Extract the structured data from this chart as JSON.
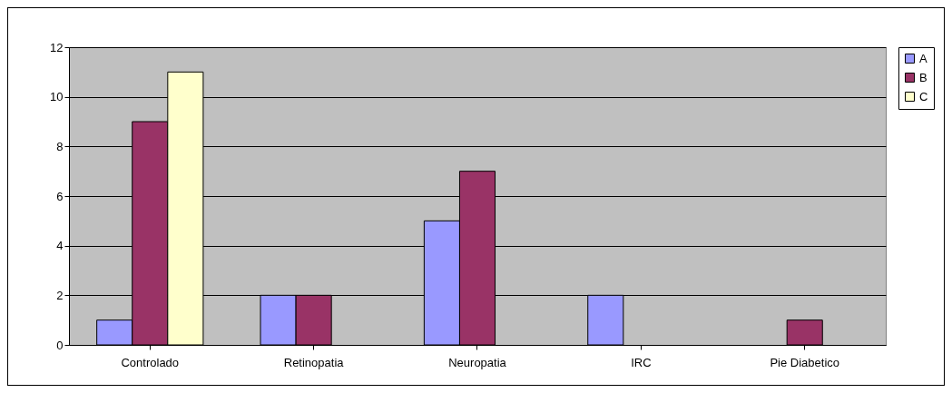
{
  "chart_data": {
    "type": "bar",
    "categories": [
      "Controlado",
      "Retinopatia",
      "Neuropatia",
      "IRC",
      "Pie Diabetico"
    ],
    "series": [
      {
        "name": "A",
        "color": "#9999ff",
        "values": [
          1,
          2,
          5,
          2,
          null
        ]
      },
      {
        "name": "B",
        "color": "#993366",
        "values": [
          9,
          2,
          7,
          null,
          1
        ]
      },
      {
        "name": "C",
        "color": "#ffffcc",
        "values": [
          11,
          null,
          null,
          null,
          null
        ]
      }
    ],
    "ylim": [
      0,
      12
    ],
    "yticks": [
      0,
      2,
      4,
      6,
      8,
      10,
      12
    ],
    "grid": "y",
    "legend": "right"
  }
}
